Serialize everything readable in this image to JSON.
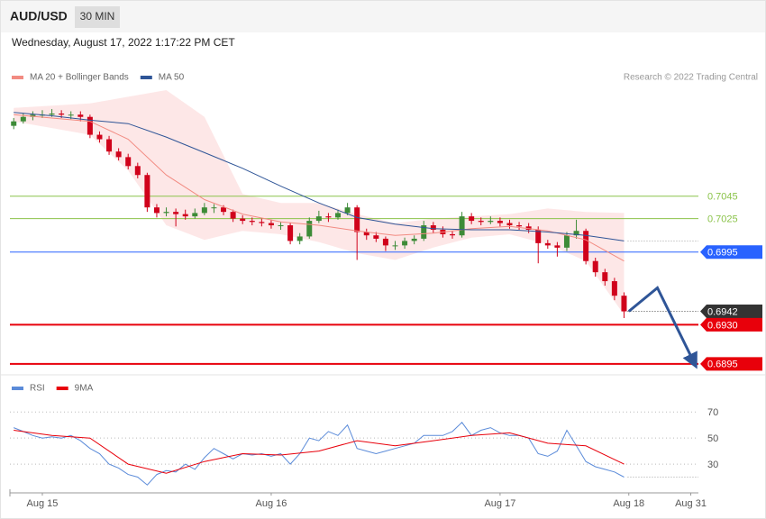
{
  "header": {
    "symbol": "AUD/USD",
    "timeframe": "30 MIN",
    "timestamp": "Wednesday, August 17, 2022 1:17:22 PM CET"
  },
  "chart_data": [
    {
      "type": "candlestick",
      "credit": "Research © 2022 Trading Central",
      "up_color": "#3d8b37",
      "down_color": "#d0021b",
      "xlim": [
        -3.4,
        68.8
      ],
      "ylim": [
        0.6886,
        0.7144
      ],
      "xticks": [
        {
          "value": 0,
          "label": "Aug 15"
        },
        {
          "value": 24,
          "label": "Aug 16"
        },
        {
          "value": 48,
          "label": "Aug 17"
        },
        {
          "value": 61.5,
          "label": "Aug 18"
        },
        {
          "value": 68,
          "label": "Aug 31"
        }
      ],
      "x": [
        -3,
        -2,
        -1,
        0,
        1,
        2,
        3,
        4,
        5,
        6,
        7,
        8,
        9,
        10,
        11,
        12,
        13,
        14,
        15,
        16,
        17,
        18,
        19,
        20,
        21,
        22,
        23,
        24,
        25,
        26,
        27,
        28,
        29,
        30,
        31,
        32,
        33,
        34,
        35,
        36,
        37,
        38,
        39,
        40,
        41,
        42,
        43,
        44,
        45,
        46,
        47,
        48,
        49,
        50,
        51,
        52,
        53,
        54,
        55,
        56,
        57,
        58,
        59,
        60,
        61
      ],
      "candles": [
        [
          0.7108,
          0.7115,
          0.7105,
          0.7112
        ],
        [
          0.7112,
          0.7119,
          0.711,
          0.7116
        ],
        [
          0.7116,
          0.7121,
          0.7113,
          0.7118
        ],
        [
          0.7118,
          0.7122,
          0.7115,
          0.7118
        ],
        [
          0.7118,
          0.7123,
          0.7116,
          0.7119
        ],
        [
          0.7119,
          0.7122,
          0.7115,
          0.7118
        ],
        [
          0.7118,
          0.7121,
          0.7114,
          0.7118
        ],
        [
          0.7118,
          0.7121,
          0.7112,
          0.7116
        ],
        [
          0.7116,
          0.7118,
          0.7097,
          0.71
        ],
        [
          0.71,
          0.7103,
          0.7093,
          0.7096
        ],
        [
          0.7096,
          0.7099,
          0.7082,
          0.7085
        ],
        [
          0.7085,
          0.7088,
          0.7077,
          0.708
        ],
        [
          0.708,
          0.7083,
          0.7069,
          0.7072
        ],
        [
          0.7072,
          0.7075,
          0.7061,
          0.7064
        ],
        [
          0.7064,
          0.7066,
          0.7031,
          0.7035
        ],
        [
          0.7035,
          0.7038,
          0.7026,
          0.703
        ],
        [
          0.703,
          0.7035,
          0.7027,
          0.7031
        ],
        [
          0.7031,
          0.7034,
          0.7018,
          0.7029
        ],
        [
          0.7029,
          0.7033,
          0.7024,
          0.7027
        ],
        [
          0.7027,
          0.7034,
          0.7025,
          0.703
        ],
        [
          0.703,
          0.7039,
          0.7028,
          0.7035
        ],
        [
          0.7035,
          0.7038,
          0.703,
          0.7035
        ],
        [
          0.7035,
          0.7037,
          0.7028,
          0.7031
        ],
        [
          0.7031,
          0.7033,
          0.7022,
          0.7025
        ],
        [
          0.7025,
          0.7028,
          0.702,
          0.7023
        ],
        [
          0.7023,
          0.7026,
          0.7019,
          0.7022
        ],
        [
          0.7022,
          0.7025,
          0.7018,
          0.7021
        ],
        [
          0.7021,
          0.7024,
          0.7016,
          0.7019
        ],
        [
          0.7019,
          0.7022,
          0.7015,
          0.7019
        ],
        [
          0.7019,
          0.7021,
          0.7002,
          0.7005
        ],
        [
          0.7005,
          0.7012,
          0.7002,
          0.7009
        ],
        [
          0.7009,
          0.7026,
          0.7007,
          0.7023
        ],
        [
          0.7023,
          0.7032,
          0.7021,
          0.7027
        ],
        [
          0.7027,
          0.703,
          0.7022,
          0.7026
        ],
        [
          0.7026,
          0.7033,
          0.7024,
          0.703
        ],
        [
          0.703,
          0.7039,
          0.7028,
          0.7035
        ],
        [
          0.7035,
          0.7037,
          0.6988,
          0.7013
        ],
        [
          0.7013,
          0.7016,
          0.7006,
          0.701
        ],
        [
          0.701,
          0.7013,
          0.7004,
          0.7007
        ],
        [
          0.7007,
          0.7009,
          0.6996,
          0.7001
        ],
        [
          0.7001,
          0.7005,
          0.6997,
          0.7001
        ],
        [
          0.7001,
          0.7008,
          0.6998,
          0.7005
        ],
        [
          0.7005,
          0.701,
          0.7002,
          0.7007
        ],
        [
          0.7007,
          0.7023,
          0.7005,
          0.7019
        ],
        [
          0.7019,
          0.7022,
          0.7012,
          0.7015
        ],
        [
          0.7015,
          0.7018,
          0.7008,
          0.7011
        ],
        [
          0.7011,
          0.7014,
          0.7007,
          0.701
        ],
        [
          0.701,
          0.7031,
          0.7008,
          0.7027
        ],
        [
          0.7027,
          0.703,
          0.702,
          0.7023
        ],
        [
          0.7023,
          0.7026,
          0.7019,
          0.7022
        ],
        [
          0.7022,
          0.7027,
          0.702,
          0.7023
        ],
        [
          0.7023,
          0.7026,
          0.7018,
          0.7021
        ],
        [
          0.7021,
          0.7024,
          0.7016,
          0.7019
        ],
        [
          0.7019,
          0.7022,
          0.7015,
          0.7018
        ],
        [
          0.7018,
          0.7021,
          0.7012,
          0.7015
        ],
        [
          0.7015,
          0.7018,
          0.6985,
          0.7003
        ],
        [
          0.7003,
          0.7006,
          0.6998,
          0.7001
        ],
        [
          0.7001,
          0.7004,
          0.6991,
          0.6999
        ],
        [
          0.6999,
          0.7013,
          0.6996,
          0.701
        ],
        [
          0.701,
          0.7024,
          0.7007,
          0.7014
        ],
        [
          0.7014,
          0.7016,
          0.6984,
          0.6987
        ],
        [
          0.6987,
          0.699,
          0.6973,
          0.6977
        ],
        [
          0.6977,
          0.698,
          0.6965,
          0.6969
        ],
        [
          0.6969,
          0.6972,
          0.6952,
          0.6956
        ],
        [
          0.6956,
          0.6959,
          0.6936,
          0.6942
        ]
      ],
      "series": [
        {
          "name": "MA 20 + Bollinger Bands",
          "color": "#f28b82",
          "band_color": "#fde3e3",
          "x": [
            -3,
            1,
            5,
            9,
            13,
            17,
            21,
            25,
            29,
            33,
            37,
            41,
            45,
            49,
            53,
            57,
            61
          ],
          "values": [
            0.7118,
            0.7115,
            0.7112,
            0.7096,
            0.7064,
            0.7042,
            0.7029,
            0.7022,
            0.7019,
            0.7014,
            0.701,
            0.7012,
            0.7016,
            0.7018,
            0.7014,
            0.7006,
            0.6987
          ],
          "upper": [
            0.7124,
            0.7126,
            0.7128,
            0.7134,
            0.714,
            0.7116,
            0.7047,
            0.7039,
            0.7039,
            0.7029,
            0.7021,
            0.7025,
            0.7027,
            0.7029,
            0.7034,
            0.7031,
            0.703
          ],
          "lower": [
            0.7112,
            0.7106,
            0.71,
            0.7068,
            0.7019,
            0.7006,
            0.7014,
            0.7011,
            0.7004,
            0.6994,
            0.6988,
            0.6999,
            0.7008,
            0.7011,
            0.7002,
            0.6987,
            0.6939
          ]
        },
        {
          "name": "MA 50",
          "color": "#2f5597",
          "x": [
            -3,
            1,
            5,
            9,
            13,
            17,
            21,
            25,
            29,
            33,
            37,
            41,
            45,
            49,
            53,
            57,
            61
          ],
          "values": [
            0.712,
            0.7117,
            0.7113,
            0.711,
            0.7098,
            0.7084,
            0.707,
            0.7054,
            0.7039,
            0.7026,
            0.702,
            0.7016,
            0.7015,
            0.7015,
            0.7013,
            0.701,
            0.7005
          ]
        }
      ],
      "levels": [
        {
          "value": 0.7045,
          "color": "#8bc34a",
          "line": "solid",
          "box": false
        },
        {
          "value": 0.7025,
          "color": "#8bc34a",
          "line": "solid",
          "box": false
        },
        {
          "value": 0.6995,
          "color": "#2962ff",
          "line": "solid",
          "box": true
        },
        {
          "value": 0.6942,
          "color": "#333333",
          "line": "dotted",
          "box": true
        },
        {
          "value": 0.693,
          "label": "0.6930",
          "color": "#e8000b",
          "line": "thick",
          "box": true
        },
        {
          "value": 0.6895,
          "color": "#e8000b",
          "line": "thick",
          "box": true
        }
      ],
      "forecast": {
        "color": "#2f5597",
        "x": [
          61.5,
          64.5,
          68.3
        ],
        "values": [
          0.6942,
          0.6963,
          0.6897
        ]
      }
    },
    {
      "type": "line",
      "xlim": [
        -3.4,
        68.8
      ],
      "ylim": [
        10,
        84
      ],
      "yticks": [
        30,
        50,
        70
      ],
      "grid": true,
      "series": [
        {
          "name": "RSI",
          "color": "#5b8bd9",
          "x": [
            -3,
            -2,
            -1,
            0,
            1,
            2,
            3,
            4,
            5,
            6,
            7,
            8,
            9,
            10,
            11,
            12,
            13,
            14,
            15,
            16,
            17,
            18,
            19,
            20,
            21,
            22,
            23,
            24,
            25,
            26,
            27,
            28,
            29,
            30,
            31,
            32,
            33,
            34,
            35,
            36,
            37,
            38,
            39,
            40,
            41,
            42,
            43,
            44,
            45,
            46,
            47,
            48,
            49,
            50,
            51,
            52,
            53,
            54,
            55,
            56,
            57,
            58,
            59,
            60,
            61
          ],
          "values": [
            58,
            55,
            52,
            50,
            51,
            50,
            52,
            48,
            42,
            38,
            30,
            27,
            22,
            20,
            14,
            22,
            25,
            24,
            30,
            26,
            35,
            42,
            38,
            34,
            38,
            37,
            38,
            36,
            38,
            30,
            38,
            50,
            48,
            55,
            52,
            60,
            42,
            40,
            38,
            40,
            42,
            44,
            46,
            52,
            52,
            52,
            55,
            62,
            52,
            56,
            58,
            54,
            52,
            52,
            50,
            38,
            36,
            40,
            56,
            44,
            32,
            28,
            26,
            24,
            20
          ]
        },
        {
          "name": "9MA",
          "color": "#e8000b",
          "x": [
            -3,
            1,
            5,
            9,
            13,
            17,
            21,
            25,
            29,
            33,
            37,
            41,
            45,
            49,
            53,
            57,
            61
          ],
          "values": [
            56,
            52,
            50,
            30,
            23,
            32,
            38,
            37,
            40,
            48,
            44,
            48,
            52,
            54,
            46,
            44,
            30
          ]
        }
      ]
    }
  ]
}
